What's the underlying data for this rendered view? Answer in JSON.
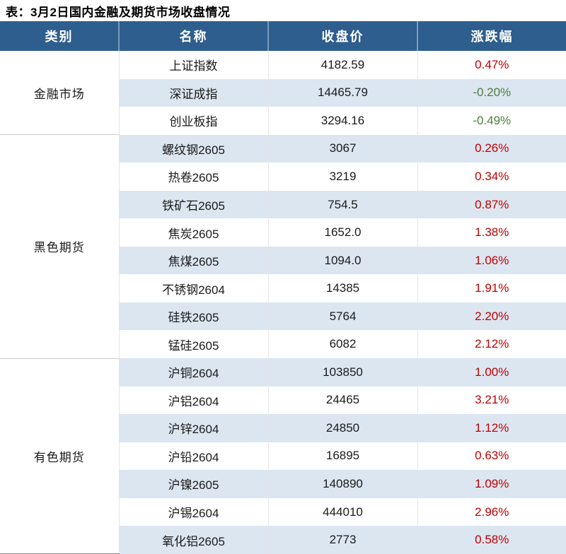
{
  "title": "表：3月2日国内金融及期货市场收盘情况",
  "colors": {
    "header_bg": "#2E5E8E",
    "header_text": "#FFFFFF",
    "stripe": "#DCE6F1",
    "up": "#C00000",
    "down": "#4E7E3C"
  },
  "chart_data": {
    "type": "table",
    "title": "表：3月2日国内金融及期货市场收盘情况",
    "columns": [
      "类别",
      "名称",
      "收盘价",
      "涨跌幅"
    ],
    "sections": [
      {
        "category": "金融市场",
        "rows": [
          {
            "name": "上证指数",
            "close": "4182.59",
            "change": "0.47%"
          },
          {
            "name": "深证成指",
            "close": "14465.79",
            "change": "-0.20%"
          },
          {
            "name": "创业板指",
            "close": "3294.16",
            "change": "-0.49%"
          }
        ]
      },
      {
        "category": "黑色期货",
        "rows": [
          {
            "name": "螺纹钢2605",
            "close": "3067",
            "change": "0.26%"
          },
          {
            "name": "热卷2605",
            "close": "3219",
            "change": "0.34%"
          },
          {
            "name": "铁矿石2605",
            "close": "754.5",
            "change": "0.87%"
          },
          {
            "name": "焦炭2605",
            "close": "1652.0",
            "change": "1.38%"
          },
          {
            "name": "焦煤2605",
            "close": "1094.0",
            "change": "1.06%"
          },
          {
            "name": "不锈钢2604",
            "close": "14385",
            "change": "1.91%"
          },
          {
            "name": "硅铁2605",
            "close": "5764",
            "change": "2.20%"
          },
          {
            "name": "锰硅2605",
            "close": "6082",
            "change": "2.12%"
          }
        ]
      },
      {
        "category": "有色期货",
        "rows": [
          {
            "name": "沪铜2604",
            "close": "103850",
            "change": "1.00%"
          },
          {
            "name": "沪铝2604",
            "close": "24465",
            "change": "3.21%"
          },
          {
            "name": "沪锌2604",
            "close": "24850",
            "change": "1.12%"
          },
          {
            "name": "沪铅2604",
            "close": "16895",
            "change": "0.63%"
          },
          {
            "name": "沪镍2605",
            "close": "140890",
            "change": "1.09%"
          },
          {
            "name": "沪锡2604",
            "close": "444010",
            "change": "2.96%"
          },
          {
            "name": "氧化铝2605",
            "close": "2773",
            "change": "0.58%"
          }
        ]
      }
    ]
  }
}
